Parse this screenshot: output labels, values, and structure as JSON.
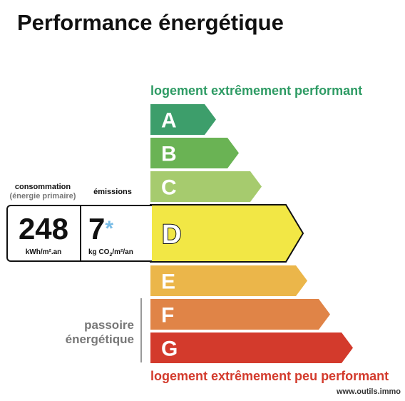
{
  "title": "Performance énergétique",
  "top_caption": "logement extrêmement performant",
  "bottom_caption": "logement extrêmement peu performant",
  "website": "www.outils.immo",
  "passoire": {
    "line1": "passoire",
    "line2": "énergétique"
  },
  "consumption": {
    "heading_line1": "consommation",
    "heading_line2": "(énergie primaire)",
    "value": "248",
    "unit": "kWh/m².an"
  },
  "emissions": {
    "heading": "émissions",
    "value": "7",
    "asterisk": "*",
    "unit_prefix": "kg CO",
    "unit_sub": "2",
    "unit_suffix": "/m²/an"
  },
  "selected_class": "D",
  "classes": [
    {
      "letter": "A",
      "color": "#3d9e6b"
    },
    {
      "letter": "B",
      "color": "#6ab354"
    },
    {
      "letter": "C",
      "color": "#a6cb6e"
    },
    {
      "letter": "D",
      "color": "#f2e745"
    },
    {
      "letter": "E",
      "color": "#ebb64a"
    },
    {
      "letter": "F",
      "color": "#e08447"
    },
    {
      "letter": "G",
      "color": "#d33a2c"
    }
  ]
}
